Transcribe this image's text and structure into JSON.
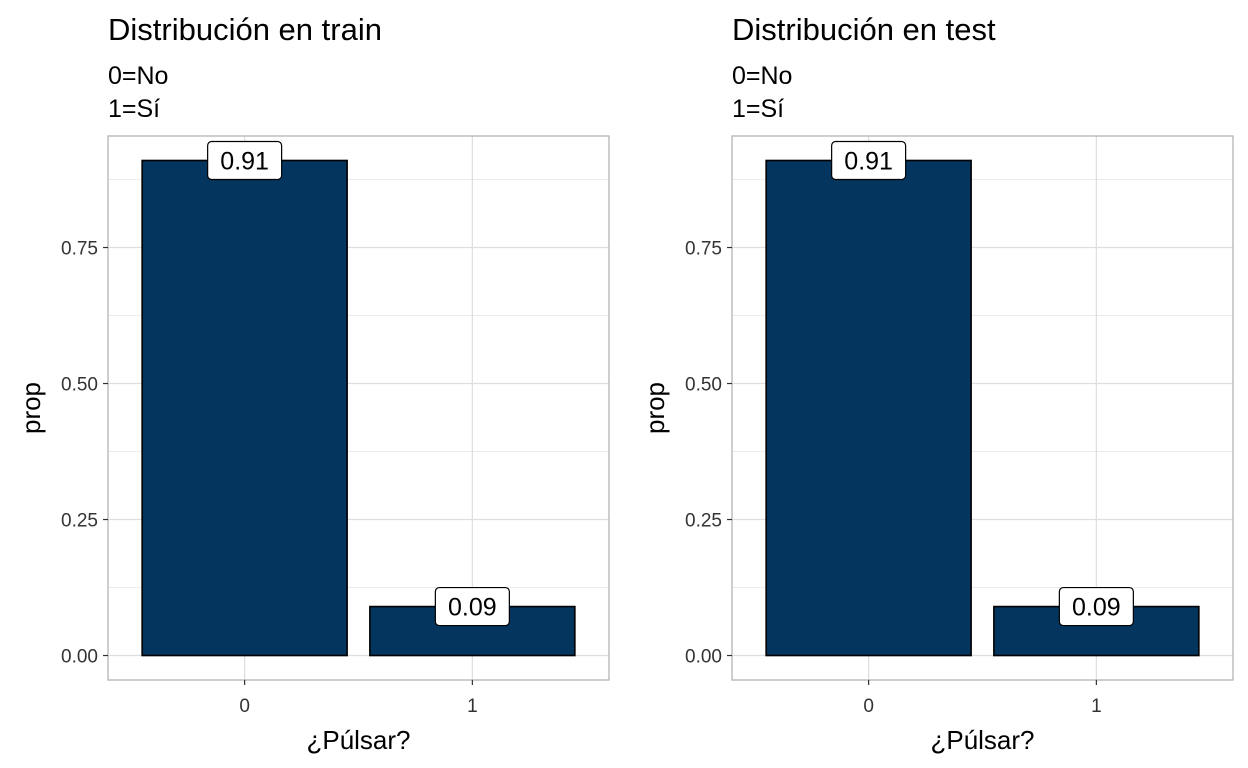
{
  "chart_data": [
    {
      "type": "bar",
      "title": "Distribución en train",
      "subtitle_lines": [
        "0=No",
        "1=Sí"
      ],
      "xlabel": "¿Púlsar?",
      "ylabel": "prop",
      "categories": [
        "0",
        "1"
      ],
      "values": [
        0.91,
        0.09
      ],
      "data_labels": [
        "0.91",
        "0.09"
      ],
      "yticks": [
        "0.00",
        "0.25",
        "0.50",
        "0.75"
      ],
      "ylim": [
        -0.045,
        0.955
      ],
      "grid": true,
      "bar_color": "#04355E",
      "bar_border_color": "#000000"
    },
    {
      "type": "bar",
      "title": "Distribución en test",
      "subtitle_lines": [
        "0=No",
        "1=Sí"
      ],
      "xlabel": "¿Púlsar?",
      "ylabel": "prop",
      "categories": [
        "0",
        "1"
      ],
      "values": [
        0.91,
        0.09
      ],
      "data_labels": [
        "0.91",
        "0.09"
      ],
      "yticks": [
        "0.00",
        "0.25",
        "0.50",
        "0.75"
      ],
      "ylim": [
        -0.045,
        0.955
      ],
      "grid": true,
      "bar_color": "#04355E",
      "bar_border_color": "#000000"
    }
  ]
}
